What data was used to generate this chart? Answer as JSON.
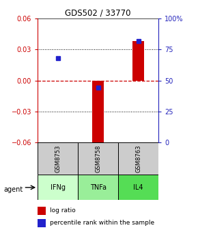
{
  "title": "GDS502 / 33770",
  "samples": [
    "GSM8753",
    "GSM8758",
    "GSM8763"
  ],
  "agents": [
    "IFNg",
    "TNFa",
    "IL4"
  ],
  "log_ratios": [
    0.0,
    -0.065,
    0.038
  ],
  "percentile_ranks": [
    68,
    44,
    82
  ],
  "ylim_left": [
    -0.06,
    0.06
  ],
  "ylim_right": [
    0,
    100
  ],
  "yticks_left": [
    -0.06,
    -0.03,
    0,
    0.03,
    0.06
  ],
  "yticks_right": [
    0,
    25,
    50,
    75,
    100
  ],
  "right_tick_labels": [
    "0",
    "25",
    "50",
    "75",
    "100%"
  ],
  "bar_color": "#cc0000",
  "dot_color": "#2222cc",
  "agent_colors": [
    "#ccffcc",
    "#99ee99",
    "#55dd55"
  ],
  "sample_bg": "#cccccc",
  "left_axis_color": "#cc0000",
  "right_axis_color": "#2222bb",
  "bar_width": 0.3,
  "x_positions": [
    0,
    1,
    2
  ]
}
